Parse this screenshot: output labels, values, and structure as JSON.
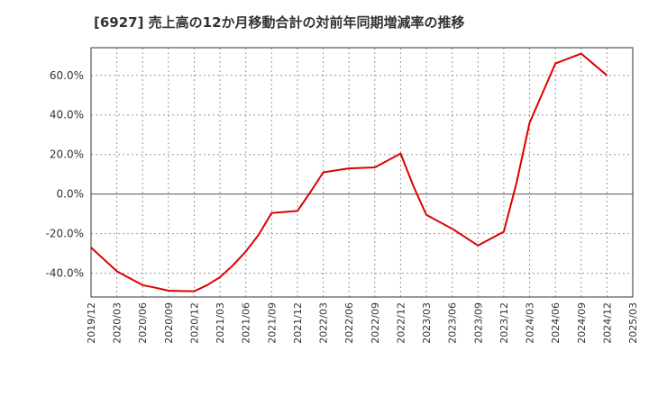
{
  "chart_data": {
    "type": "line",
    "title": "[6927]  売上高の12か月移動合計の対前年同期増減率の推移",
    "xlabel": "",
    "ylabel": "",
    "ylim": [
      -52,
      74
    ],
    "y_ticks": [
      -40,
      -20,
      0,
      20,
      40,
      60
    ],
    "y_tick_labels": [
      "-40.0%",
      "-20.0%",
      "0.0%",
      "20.0%",
      "40.0%",
      "60.0%"
    ],
    "x_tick_labels": [
      "2019/12",
      "2020/03",
      "2020/06",
      "2020/09",
      "2020/12",
      "2021/03",
      "2021/06",
      "2021/09",
      "2021/12",
      "2022/03",
      "2022/06",
      "2022/09",
      "2022/12",
      "2023/03",
      "2023/06",
      "2023/09",
      "2023/12",
      "2024/03",
      "2024/06",
      "2024/09",
      "2024/12",
      "2025/03"
    ],
    "series": [
      {
        "name": "増減率",
        "color": "#dd0000",
        "values": [
          [
            0,
            -27
          ],
          [
            0.5,
            -33
          ],
          [
            1,
            -39
          ],
          [
            1.5,
            -42.5
          ],
          [
            2,
            -46
          ],
          [
            2.5,
            -47.3
          ],
          [
            3,
            -48.8
          ],
          [
            3.5,
            -49
          ],
          [
            4,
            -49.1
          ],
          [
            4.5,
            -46
          ],
          [
            5,
            -42
          ],
          [
            5.5,
            -36
          ],
          [
            6,
            -29
          ],
          [
            6.5,
            -20.5
          ],
          [
            7,
            -9.5
          ],
          [
            7.5,
            -9
          ],
          [
            8,
            -8.5
          ],
          [
            8.5,
            1
          ],
          [
            9,
            11
          ],
          [
            10,
            13
          ],
          [
            11,
            13.5
          ],
          [
            12,
            20.5
          ],
          [
            12.5,
            4
          ],
          [
            13,
            -10.5
          ],
          [
            14,
            -17.5
          ],
          [
            15,
            -26
          ],
          [
            16,
            -19
          ],
          [
            16.5,
            6
          ],
          [
            17,
            36
          ],
          [
            18,
            66
          ],
          [
            19,
            71
          ],
          [
            20,
            60
          ]
        ]
      }
    ]
  }
}
